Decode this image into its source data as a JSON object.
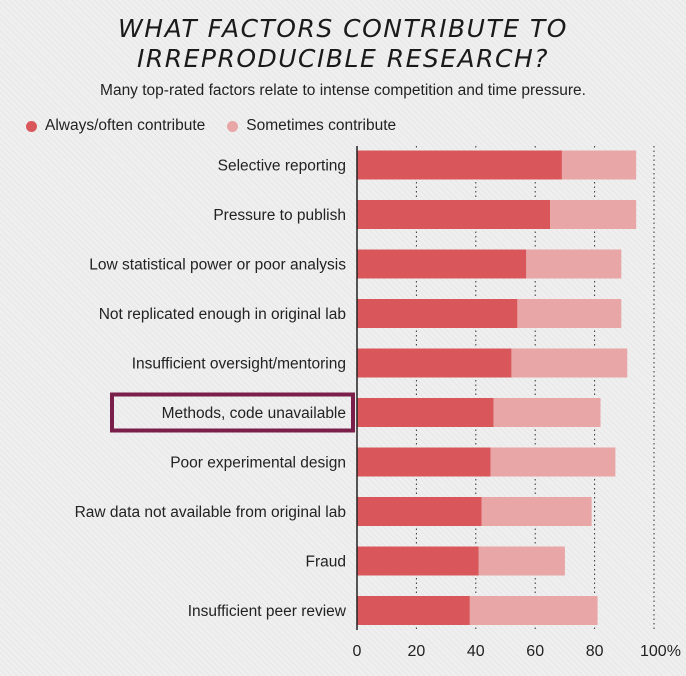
{
  "chart_data": {
    "type": "bar",
    "orientation": "horizontal",
    "stacked": true,
    "title": "WHAT FACTORS CONTRIBUTE TO IRREPRODUCIBLE RESEARCH?",
    "title_lines": [
      "WHAT FACTORS CONTRIBUTE TO",
      "IRREPRODUCIBLE RESEARCH?"
    ],
    "subtitle": "Many top-rated factors relate to intense competition and time pressure.",
    "categories": [
      "Selective reporting",
      "Pressure to publish",
      "Low statistical power or poor analysis",
      "Not replicated enough in original lab",
      "Insufficient oversight/mentoring",
      "Methods, code unavailable",
      "Poor experimental design",
      "Raw data not available from original lab",
      "Fraud",
      "Insufficient peer review"
    ],
    "series": [
      {
        "name": "Always/often contribute",
        "color": "#d9575b",
        "values": [
          69,
          65,
          57,
          54,
          52,
          46,
          45,
          42,
          41,
          38
        ]
      },
      {
        "name": "Sometimes contribute",
        "color": "#e8a6a6",
        "values": [
          25,
          29,
          32,
          35,
          39,
          36,
          42,
          37,
          29,
          43
        ]
      }
    ],
    "xlim": [
      0,
      100
    ],
    "xticks": [
      "0",
      "20",
      "40",
      "60",
      "80",
      "100%"
    ],
    "xtick_values": [
      0,
      20,
      40,
      60,
      80,
      100
    ],
    "grid": "vertical dotted",
    "legend_position": "top-left",
    "highlighted_category": "Methods, code unavailable",
    "highlight_color": "#7a1f4a"
  }
}
